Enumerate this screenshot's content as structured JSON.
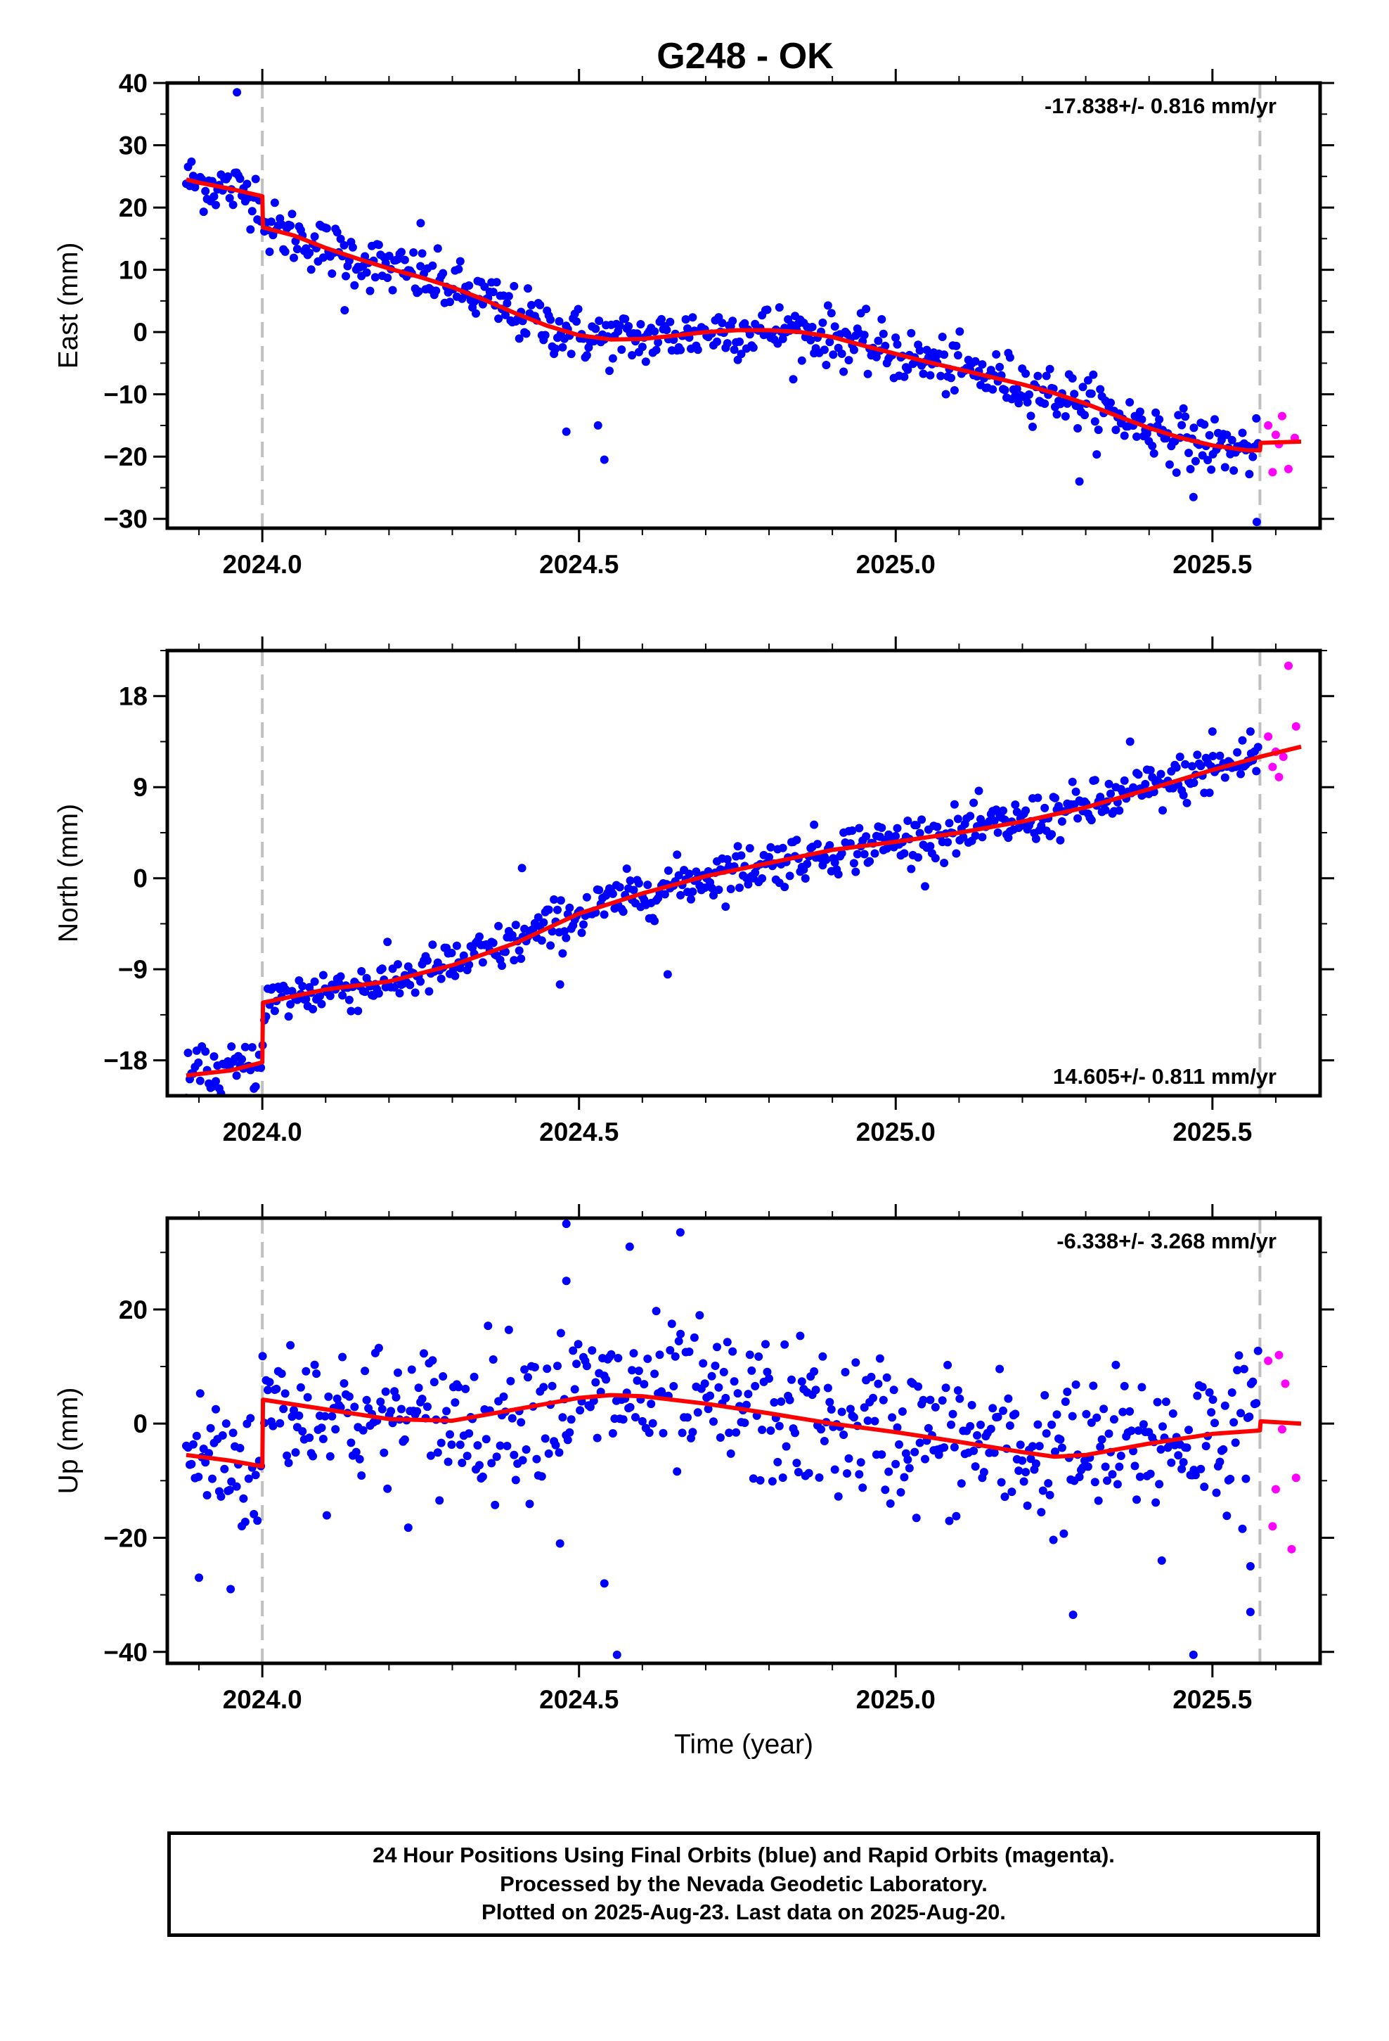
{
  "title": "G248 - OK",
  "xlabel": "Time (year)",
  "footer": {
    "line1": "24 Hour Positions Using Final Orbits (blue) and Rapid Orbits (magenta).",
    "line2": "Processed by the Nevada Geodetic Laboratory.",
    "line3": "Plotted on 2025-Aug-23. Last data on 2025-Aug-20."
  },
  "colors": {
    "final": "#0000ff",
    "rapid": "#ff00ff",
    "model": "#ff0000",
    "event_line": "#c0c0c0"
  },
  "chart_data": [
    {
      "type": "scatter",
      "component": "east",
      "ylabel": "East (mm)",
      "rate_label": "-17.838+/- 0.816 mm/yr",
      "rate_position": "top-right",
      "xlim": [
        2023.85,
        2025.67
      ],
      "ylim": [
        -31.5,
        40
      ],
      "xticks": [
        2024.0,
        2024.5,
        2025.0,
        2025.5
      ],
      "xtick_labels": [
        "2024.0",
        "2024.5",
        "2025.0",
        "2025.5"
      ],
      "yticks": [
        -30,
        -20,
        -10,
        0,
        10,
        20,
        30,
        40
      ],
      "event_lines": [
        2024.0,
        2025.575
      ],
      "trend": [
        [
          2023.88,
          24.5
        ],
        [
          2023.9,
          24
        ],
        [
          2023.95,
          23
        ],
        [
          2024.0,
          21.8
        ],
        [
          2024.001,
          16.8
        ],
        [
          2024.05,
          15.5
        ],
        [
          2024.1,
          13.5
        ],
        [
          2024.15,
          11.8
        ],
        [
          2024.2,
          10.2
        ],
        [
          2024.25,
          8.8
        ],
        [
          2024.3,
          7.2
        ],
        [
          2024.35,
          5.2
        ],
        [
          2024.4,
          3.0
        ],
        [
          2024.45,
          1.0
        ],
        [
          2024.5,
          -0.5
        ],
        [
          2024.55,
          -1.2
        ],
        [
          2024.6,
          -1.1
        ],
        [
          2024.65,
          -0.6
        ],
        [
          2024.7,
          0.0
        ],
        [
          2024.75,
          0.3
        ],
        [
          2024.8,
          0.3
        ],
        [
          2024.85,
          0.0
        ],
        [
          2024.9,
          -0.8
        ],
        [
          2024.95,
          -2.2
        ],
        [
          2025.0,
          -3.5
        ],
        [
          2025.05,
          -4.8
        ],
        [
          2025.1,
          -6.0
        ],
        [
          2025.15,
          -7.2
        ],
        [
          2025.2,
          -8.4
        ],
        [
          2025.25,
          -9.8
        ],
        [
          2025.3,
          -11.5
        ],
        [
          2025.35,
          -13.5
        ],
        [
          2025.4,
          -15.4
        ],
        [
          2025.45,
          -17.0
        ],
        [
          2025.5,
          -18.2
        ],
        [
          2025.555,
          -19.0
        ],
        [
          2025.575,
          -19.0
        ],
        [
          2025.576,
          -17.8
        ],
        [
          2025.64,
          -17.6
        ]
      ],
      "scatter": {
        "noise": 2.2,
        "outliers": [
          [
            2023.96,
            38.5
          ],
          [
            2024.25,
            17.5
          ],
          [
            2024.48,
            -16
          ],
          [
            2024.54,
            -20.5
          ],
          [
            2024.53,
            -15
          ],
          [
            2025.29,
            -24
          ],
          [
            2025.47,
            -26.5
          ],
          [
            2025.57,
            -30.5
          ],
          [
            2024.13,
            3.5
          ]
        ]
      },
      "rapid_points": [
        [
          2025.588,
          -15
        ],
        [
          2025.595,
          -22.5
        ],
        [
          2025.6,
          -16.5
        ],
        [
          2025.605,
          -18
        ],
        [
          2025.61,
          -13.5
        ],
        [
          2025.62,
          -22
        ],
        [
          2025.63,
          -17
        ]
      ]
    },
    {
      "type": "scatter",
      "component": "north",
      "ylabel": "North (mm)",
      "rate_label": "14.605+/- 0.811 mm/yr",
      "rate_position": "bottom-right",
      "xlim": [
        2023.85,
        2025.67
      ],
      "ylim": [
        -21.5,
        22.5
      ],
      "xticks": [
        2024.0,
        2024.5,
        2025.0,
        2025.5
      ],
      "xtick_labels": [
        "2024.0",
        "2024.5",
        "2025.0",
        "2025.5"
      ],
      "yticks": [
        -18,
        -9,
        0,
        9,
        18
      ],
      "event_lines": [
        2024.0,
        2025.575
      ],
      "trend": [
        [
          2023.88,
          -19.5
        ],
        [
          2023.95,
          -19
        ],
        [
          2024.0,
          -18.2
        ],
        [
          2024.001,
          -12.3
        ],
        [
          2024.1,
          -11.0
        ],
        [
          2024.2,
          -10.2
        ],
        [
          2024.3,
          -8.6
        ],
        [
          2024.4,
          -6.4
        ],
        [
          2024.5,
          -3.5
        ],
        [
          2024.6,
          -1.5
        ],
        [
          2024.7,
          0.2
        ],
        [
          2024.8,
          1.5
        ],
        [
          2024.9,
          2.8
        ],
        [
          2025.0,
          3.6
        ],
        [
          2025.1,
          4.5
        ],
        [
          2025.2,
          5.6
        ],
        [
          2025.3,
          7.0
        ],
        [
          2025.4,
          8.8
        ],
        [
          2025.5,
          10.7
        ],
        [
          2025.575,
          12.0
        ],
        [
          2025.64,
          13.0
        ]
      ],
      "scatter": {
        "noise": 1.2,
        "outliers": [
          [
            2024.47,
            -10.5
          ],
          [
            2024.64,
            -9.5
          ],
          [
            2024.41,
            1
          ],
          [
            2025.37,
            13.5
          ],
          [
            2025.5,
            14.5
          ],
          [
            2025.56,
            14.5
          ]
        ]
      },
      "rapid_points": [
        [
          2025.588,
          14
        ],
        [
          2025.595,
          11
        ],
        [
          2025.6,
          12.5
        ],
        [
          2025.605,
          10
        ],
        [
          2025.612,
          12
        ],
        [
          2025.62,
          21
        ],
        [
          2025.632,
          15
        ]
      ]
    },
    {
      "type": "scatter",
      "component": "up",
      "ylabel": "Up (mm)",
      "rate_label": "-6.338+/- 3.268 mm/yr",
      "rate_position": "top-right",
      "xlim": [
        2023.85,
        2025.67
      ],
      "ylim": [
        -42,
        36
      ],
      "xticks": [
        2024.0,
        2024.5,
        2025.0,
        2025.5
      ],
      "xtick_labels": [
        "2024.0",
        "2024.5",
        "2025.0",
        "2025.5"
      ],
      "yticks": [
        -40,
        -20,
        0,
        20
      ],
      "event_lines": [
        2024.0,
        2025.575
      ],
      "trend": [
        [
          2023.88,
          -5.5
        ],
        [
          2023.95,
          -6.5
        ],
        [
          2024.0,
          -7.5
        ],
        [
          2024.001,
          4.2
        ],
        [
          2024.1,
          2.5
        ],
        [
          2024.2,
          0.8
        ],
        [
          2024.3,
          0.5
        ],
        [
          2024.4,
          2.5
        ],
        [
          2024.5,
          4.5
        ],
        [
          2024.55,
          5.0
        ],
        [
          2024.6,
          4.8
        ],
        [
          2024.7,
          3.5
        ],
        [
          2024.8,
          1.8
        ],
        [
          2024.9,
          0.0
        ],
        [
          2025.0,
          -1.5
        ],
        [
          2025.1,
          -3.2
        ],
        [
          2025.2,
          -5.0
        ],
        [
          2025.25,
          -5.8
        ],
        [
          2025.3,
          -5.5
        ],
        [
          2025.4,
          -3.5
        ],
        [
          2025.5,
          -1.8
        ],
        [
          2025.575,
          -1.2
        ],
        [
          2025.576,
          0.4
        ],
        [
          2025.64,
          0.0
        ]
      ],
      "scatter": {
        "noise": 6.5,
        "outliers": [
          [
            2024.48,
            35
          ],
          [
            2024.48,
            25
          ],
          [
            2024.58,
            31
          ],
          [
            2024.66,
            33.5
          ],
          [
            2024.56,
            -40.5
          ],
          [
            2024.54,
            -28
          ],
          [
            2024.47,
            -21
          ],
          [
            2023.9,
            -27
          ],
          [
            2023.95,
            -29
          ],
          [
            2025.28,
            -33.5
          ],
          [
            2025.47,
            -40.5
          ],
          [
            2025.56,
            -33
          ],
          [
            2025.42,
            -24
          ],
          [
            2025.56,
            -25
          ]
        ]
      },
      "rapid_points": [
        [
          2025.588,
          11
        ],
        [
          2025.595,
          -18
        ],
        [
          2025.6,
          -11.5
        ],
        [
          2025.605,
          12
        ],
        [
          2025.61,
          -1
        ],
        [
          2025.615,
          7
        ],
        [
          2025.625,
          -22
        ],
        [
          2025.632,
          -9.5
        ]
      ]
    }
  ]
}
